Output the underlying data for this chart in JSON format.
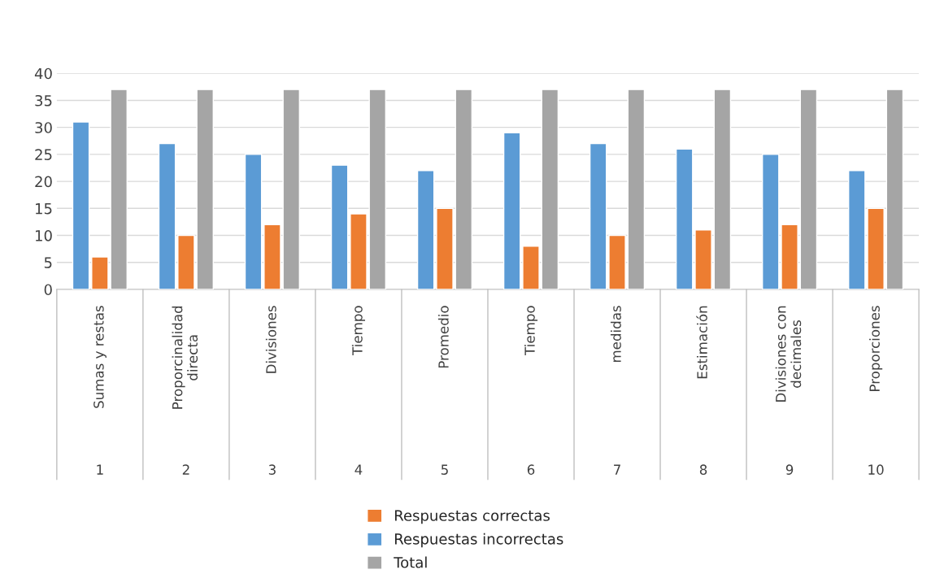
{
  "chart_data": {
    "type": "bar",
    "categories": [
      "Sumas y restas",
      "Proporcinalidad\ndirecta",
      "Divisiones",
      "Tiempo",
      "Promedio",
      "Tiempo",
      "medidas",
      "Estimación",
      "Divisiones con\ndecimales",
      "Proporciones"
    ],
    "series": [
      {
        "name": "Respuestas incorrectas",
        "color": "#5b9bd5",
        "values": [
          31,
          27,
          25,
          23,
          22,
          29,
          27,
          26,
          25,
          22
        ]
      },
      {
        "name": "Respuestas correctas",
        "color": "#ed7d31",
        "values": [
          6,
          10,
          12,
          14,
          15,
          8,
          10,
          11,
          12,
          15
        ]
      },
      {
        "name": "Total",
        "color": "#a5a5a5",
        "values": [
          37,
          37,
          37,
          37,
          37,
          37,
          37,
          37,
          37,
          37
        ]
      }
    ],
    "ylim": [
      0,
      40
    ],
    "yticks": [
      0,
      5,
      10,
      15,
      20,
      25,
      30,
      35,
      40
    ],
    "grid": "y",
    "legend": "bottom",
    "annotations": [
      "1",
      "2",
      "3",
      "4",
      "5",
      "6",
      "7",
      "8",
      "9",
      "10"
    ]
  }
}
